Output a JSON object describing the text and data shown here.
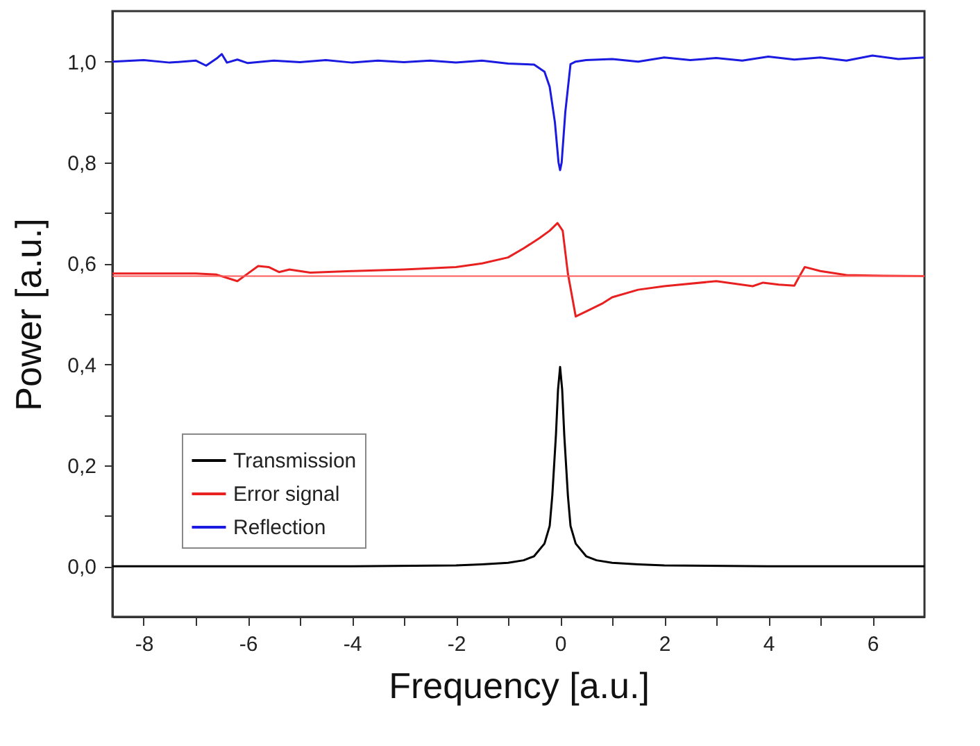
{
  "chart_data": {
    "type": "line",
    "xlabel": "Frequency [a.u.]",
    "ylabel": "Power [a.u.]",
    "xlim": [
      -8.6,
      7
    ],
    "ylim": [
      -0.1,
      1.1
    ],
    "xticks": [
      -8,
      {
        "value": -7,
        "label": null
      },
      -6,
      {
        "value": -5,
        "label": null
      },
      -4,
      {
        "value": -3,
        "label": null
      },
      -2,
      {
        "value": -1,
        "label": null
      },
      0,
      {
        "value": 1,
        "label": null
      },
      2,
      {
        "value": 3,
        "label": null
      },
      4,
      {
        "value": 5,
        "label": null
      },
      6
    ],
    "yticks": [
      {
        "value": 0,
        "label": "0,0"
      },
      {
        "value": 0.1,
        "label": null
      },
      {
        "value": 0.2,
        "label": "0,2"
      },
      {
        "value": 0.3,
        "label": null
      },
      {
        "value": 0.4,
        "label": "0,4"
      },
      {
        "value": 0.5,
        "label": null
      },
      {
        "value": 0.6,
        "label": "0,6"
      },
      {
        "value": 0.7,
        "label": null
      },
      {
        "value": 0.8,
        "label": "0,8"
      },
      {
        "value": 0.9,
        "label": null
      },
      {
        "value": 1,
        "label": "1,0"
      }
    ],
    "legend": "bottom left",
    "grid": false,
    "marker": "none",
    "line_style": "solid",
    "ref_lines": [
      {
        "axis": "y",
        "value": 0.575,
        "color": "#ff5a5a"
      }
    ],
    "series": [
      {
        "name": "Transmission",
        "color": "#000000",
        "x": [
          -8.6,
          -6,
          -4,
          -2,
          -1.5,
          -1,
          -0.7,
          -0.5,
          -0.3,
          -0.2,
          -0.15,
          -0.08,
          -0.04,
          0,
          0.04,
          0.08,
          0.15,
          0.2,
          0.3,
          0.5,
          0.7,
          1,
          1.5,
          2,
          4,
          6,
          7
        ],
        "values": [
          0,
          0,
          0,
          0.002,
          0.004,
          0.007,
          0.012,
          0.02,
          0.045,
          0.08,
          0.14,
          0.26,
          0.35,
          0.395,
          0.35,
          0.26,
          0.14,
          0.08,
          0.045,
          0.02,
          0.012,
          0.007,
          0.004,
          0.002,
          0,
          0,
          0
        ]
      },
      {
        "name": "Error signal",
        "color": "#e82020",
        "x": [
          -8.6,
          -7,
          -6.6,
          -6.2,
          -6,
          -5.8,
          -5.6,
          -5.4,
          -5.2,
          -4.8,
          -4,
          -3,
          -2,
          -1.5,
          -1,
          -0.7,
          -0.4,
          -0.2,
          -0.05,
          0.05,
          0.15,
          0.3,
          0.5,
          0.8,
          1,
          1.5,
          2,
          3,
          3.7,
          3.9,
          4.2,
          4.5,
          4.6,
          4.7,
          5,
          5.5,
          6,
          7
        ],
        "values": [
          0.58,
          0.58,
          0.578,
          0.565,
          0.58,
          0.595,
          0.593,
          0.583,
          0.588,
          0.582,
          0.585,
          0.588,
          0.593,
          0.6,
          0.612,
          0.63,
          0.65,
          0.665,
          0.68,
          0.665,
          0.58,
          0.495,
          0.505,
          0.52,
          0.533,
          0.548,
          0.555,
          0.565,
          0.555,
          0.562,
          0.558,
          0.556,
          0.575,
          0.593,
          0.585,
          0.577,
          0.576,
          0.575
        ]
      },
      {
        "name": "Reflection",
        "color": "#1a1ae0",
        "x": [
          -8.6,
          -8,
          -7.5,
          -7,
          -6.8,
          -6.6,
          -6.5,
          -6.4,
          -6.2,
          -6,
          -5.5,
          -5,
          -4.5,
          -4,
          -3.5,
          -3,
          -2.5,
          -2,
          -1.5,
          -1,
          -0.5,
          -0.3,
          -0.2,
          -0.1,
          -0.03,
          0,
          0.03,
          0.1,
          0.2,
          0.3,
          0.5,
          1,
          1.5,
          2,
          2.5,
          3,
          3.5,
          4,
          4.5,
          5,
          5.5,
          6,
          6.5,
          7
        ],
        "values": [
          1.0,
          1.003,
          0.998,
          1.002,
          0.992,
          1.006,
          1.015,
          0.998,
          1.004,
          0.997,
          1.002,
          0.999,
          1.003,
          0.998,
          1.002,
          0.999,
          1.002,
          0.998,
          1.002,
          0.996,
          0.994,
          0.98,
          0.95,
          0.88,
          0.8,
          0.785,
          0.8,
          0.9,
          0.995,
          1.0,
          1.003,
          1.005,
          1.0,
          1.008,
          1.003,
          1.007,
          1.002,
          1.01,
          1.004,
          1.008,
          1.002,
          1.012,
          1.005,
          1.008
        ]
      }
    ]
  }
}
